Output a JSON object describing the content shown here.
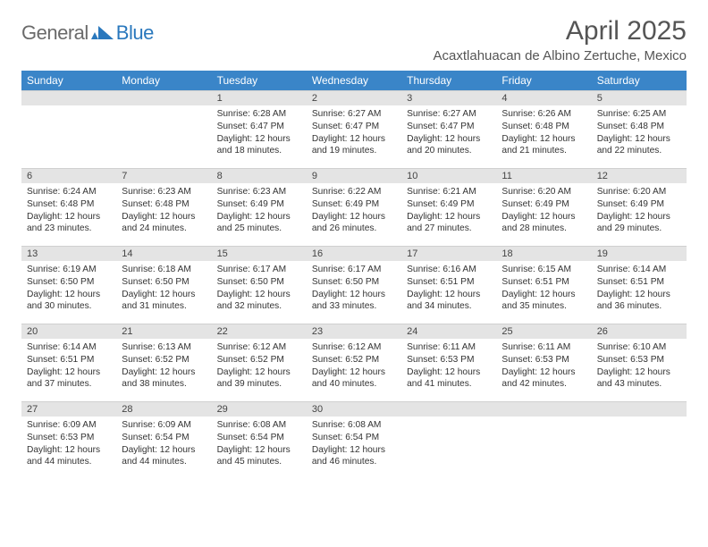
{
  "brand": {
    "text_general": "General",
    "text_blue": "Blue",
    "logo_color": "#2a78bd",
    "general_color": "#6a6a6a"
  },
  "header": {
    "title": "April 2025",
    "location": "Acaxtlahuacan de Albino Zertuche, Mexico"
  },
  "colors": {
    "header_bg": "#3a85c8",
    "header_fg": "#ffffff",
    "daynum_bg": "#e4e4e4",
    "text": "#333333"
  },
  "day_headers": [
    "Sunday",
    "Monday",
    "Tuesday",
    "Wednesday",
    "Thursday",
    "Friday",
    "Saturday"
  ],
  "weeks": [
    [
      null,
      null,
      {
        "n": "1",
        "sr": "6:28 AM",
        "ss": "6:47 PM",
        "dl": "12 hours and 18 minutes."
      },
      {
        "n": "2",
        "sr": "6:27 AM",
        "ss": "6:47 PM",
        "dl": "12 hours and 19 minutes."
      },
      {
        "n": "3",
        "sr": "6:27 AM",
        "ss": "6:47 PM",
        "dl": "12 hours and 20 minutes."
      },
      {
        "n": "4",
        "sr": "6:26 AM",
        "ss": "6:48 PM",
        "dl": "12 hours and 21 minutes."
      },
      {
        "n": "5",
        "sr": "6:25 AM",
        "ss": "6:48 PM",
        "dl": "12 hours and 22 minutes."
      }
    ],
    [
      {
        "n": "6",
        "sr": "6:24 AM",
        "ss": "6:48 PM",
        "dl": "12 hours and 23 minutes."
      },
      {
        "n": "7",
        "sr": "6:23 AM",
        "ss": "6:48 PM",
        "dl": "12 hours and 24 minutes."
      },
      {
        "n": "8",
        "sr": "6:23 AM",
        "ss": "6:49 PM",
        "dl": "12 hours and 25 minutes."
      },
      {
        "n": "9",
        "sr": "6:22 AM",
        "ss": "6:49 PM",
        "dl": "12 hours and 26 minutes."
      },
      {
        "n": "10",
        "sr": "6:21 AM",
        "ss": "6:49 PM",
        "dl": "12 hours and 27 minutes."
      },
      {
        "n": "11",
        "sr": "6:20 AM",
        "ss": "6:49 PM",
        "dl": "12 hours and 28 minutes."
      },
      {
        "n": "12",
        "sr": "6:20 AM",
        "ss": "6:49 PM",
        "dl": "12 hours and 29 minutes."
      }
    ],
    [
      {
        "n": "13",
        "sr": "6:19 AM",
        "ss": "6:50 PM",
        "dl": "12 hours and 30 minutes."
      },
      {
        "n": "14",
        "sr": "6:18 AM",
        "ss": "6:50 PM",
        "dl": "12 hours and 31 minutes."
      },
      {
        "n": "15",
        "sr": "6:17 AM",
        "ss": "6:50 PM",
        "dl": "12 hours and 32 minutes."
      },
      {
        "n": "16",
        "sr": "6:17 AM",
        "ss": "6:50 PM",
        "dl": "12 hours and 33 minutes."
      },
      {
        "n": "17",
        "sr": "6:16 AM",
        "ss": "6:51 PM",
        "dl": "12 hours and 34 minutes."
      },
      {
        "n": "18",
        "sr": "6:15 AM",
        "ss": "6:51 PM",
        "dl": "12 hours and 35 minutes."
      },
      {
        "n": "19",
        "sr": "6:14 AM",
        "ss": "6:51 PM",
        "dl": "12 hours and 36 minutes."
      }
    ],
    [
      {
        "n": "20",
        "sr": "6:14 AM",
        "ss": "6:51 PM",
        "dl": "12 hours and 37 minutes."
      },
      {
        "n": "21",
        "sr": "6:13 AM",
        "ss": "6:52 PM",
        "dl": "12 hours and 38 minutes."
      },
      {
        "n": "22",
        "sr": "6:12 AM",
        "ss": "6:52 PM",
        "dl": "12 hours and 39 minutes."
      },
      {
        "n": "23",
        "sr": "6:12 AM",
        "ss": "6:52 PM",
        "dl": "12 hours and 40 minutes."
      },
      {
        "n": "24",
        "sr": "6:11 AM",
        "ss": "6:53 PM",
        "dl": "12 hours and 41 minutes."
      },
      {
        "n": "25",
        "sr": "6:11 AM",
        "ss": "6:53 PM",
        "dl": "12 hours and 42 minutes."
      },
      {
        "n": "26",
        "sr": "6:10 AM",
        "ss": "6:53 PM",
        "dl": "12 hours and 43 minutes."
      }
    ],
    [
      {
        "n": "27",
        "sr": "6:09 AM",
        "ss": "6:53 PM",
        "dl": "12 hours and 44 minutes."
      },
      {
        "n": "28",
        "sr": "6:09 AM",
        "ss": "6:54 PM",
        "dl": "12 hours and 44 minutes."
      },
      {
        "n": "29",
        "sr": "6:08 AM",
        "ss": "6:54 PM",
        "dl": "12 hours and 45 minutes."
      },
      {
        "n": "30",
        "sr": "6:08 AM",
        "ss": "6:54 PM",
        "dl": "12 hours and 46 minutes."
      },
      null,
      null,
      null
    ]
  ],
  "labels": {
    "sunrise": "Sunrise: ",
    "sunset": "Sunset: ",
    "daylight": "Daylight: "
  }
}
